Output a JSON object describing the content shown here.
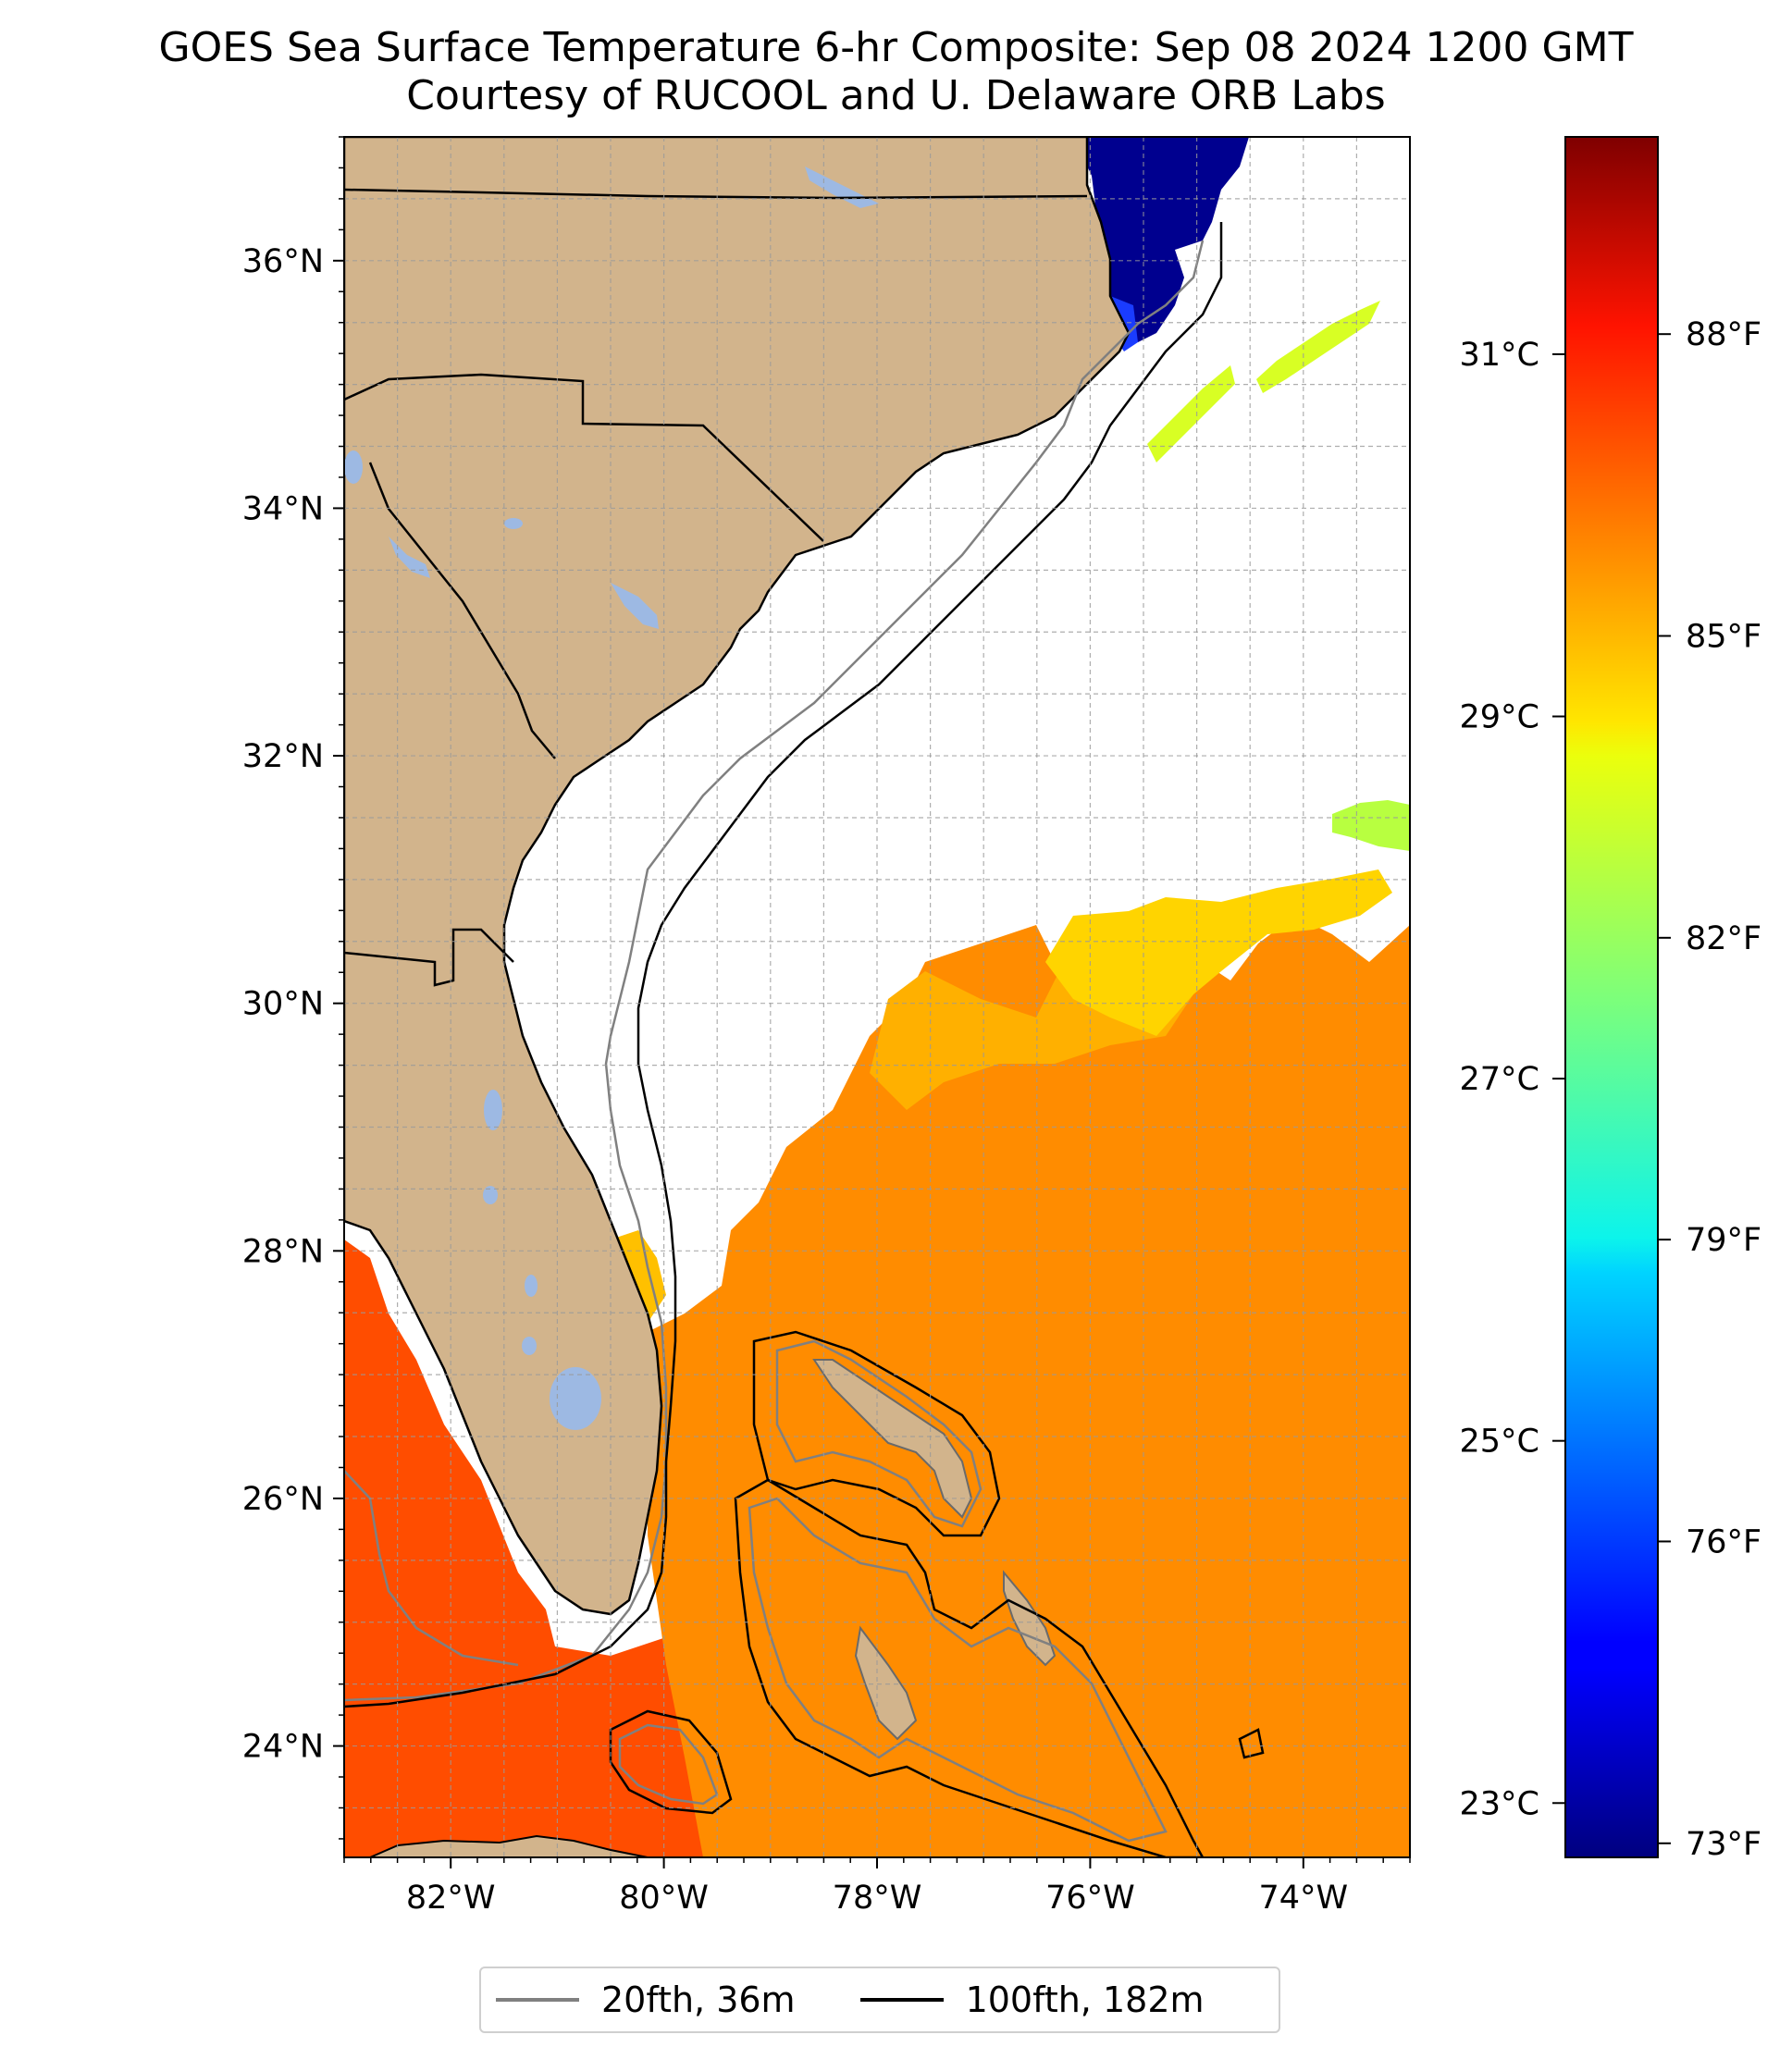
{
  "title": {
    "line1": "GOES Sea Surface Temperature 6-hr Composite: Sep 08 2024 1200 GMT",
    "line2": "Courtesy of RUCOOL and U. Delaware ORB Labs"
  },
  "map": {
    "lon_range": [
      -83.0,
      -73.0
    ],
    "lat_range": [
      23.1,
      37.0
    ],
    "lon_ticks": [
      {
        "value": -82,
        "label": "82°W"
      },
      {
        "value": -80,
        "label": "80°W"
      },
      {
        "value": -78,
        "label": "78°W"
      },
      {
        "value": -76,
        "label": "76°W"
      },
      {
        "value": -74,
        "label": "74°W"
      }
    ],
    "lat_ticks": [
      {
        "value": 24,
        "label": "24°N"
      },
      {
        "value": 26,
        "label": "26°N"
      },
      {
        "value": 28,
        "label": "28°N"
      },
      {
        "value": 30,
        "label": "30°N"
      },
      {
        "value": 32,
        "label": "32°N"
      },
      {
        "value": 34,
        "label": "34°N"
      },
      {
        "value": 36,
        "label": "36°N"
      }
    ],
    "gridlines": true,
    "colors": {
      "land": "#d2b48c",
      "lakes": "#9db9e3",
      "contour_20fth": "#808080",
      "contour_100fth": "#000000"
    }
  },
  "colorbar": {
    "colormap": "jet",
    "celsius_range": [
      22.7,
      32.2
    ],
    "celsius_ticks": [
      {
        "value": 23,
        "label": "23°C"
      },
      {
        "value": 25,
        "label": "25°C"
      },
      {
        "value": 27,
        "label": "27°C"
      },
      {
        "value": 29,
        "label": "29°C"
      },
      {
        "value": 31,
        "label": "31°C"
      }
    ],
    "fahrenheit_ticks": [
      {
        "value": 73,
        "label": "73°F"
      },
      {
        "value": 76,
        "label": "76°F"
      },
      {
        "value": 79,
        "label": "79°F"
      },
      {
        "value": 82,
        "label": "82°F"
      },
      {
        "value": 85,
        "label": "85°F"
      },
      {
        "value": 88,
        "label": "88°F"
      }
    ]
  },
  "legend": {
    "items": [
      {
        "label": "20fth, 36m",
        "color": "#808080"
      },
      {
        "label": "100fth, 182m",
        "color": "#000000"
      }
    ]
  }
}
